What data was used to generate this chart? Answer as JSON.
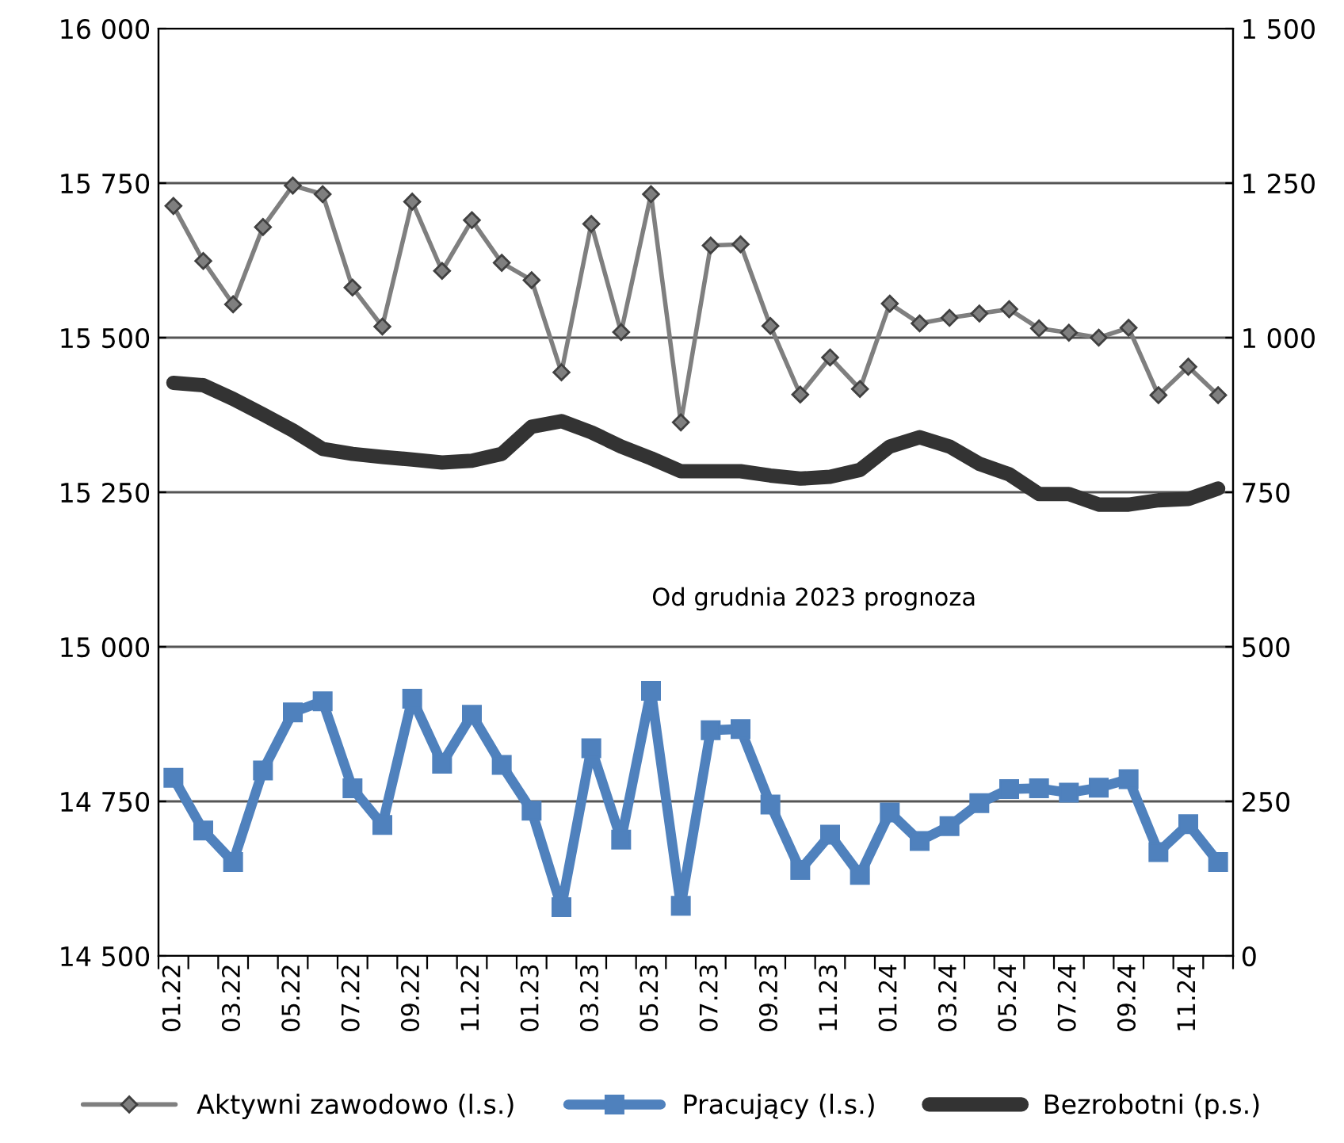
{
  "chart_data": {
    "type": "line",
    "categories": [
      "01.22",
      null,
      "03.22",
      null,
      "05.22",
      null,
      "07.22",
      null,
      "09.22",
      null,
      "11.22",
      null,
      "01.23",
      null,
      "03.23",
      null,
      "05.23",
      null,
      "07.23",
      null,
      "09.23",
      null,
      "11.23",
      null,
      "01.24",
      null,
      "03.24",
      null,
      "05.24",
      null,
      "07.24",
      null,
      "09.24",
      null,
      "11.24",
      null
    ],
    "series": [
      {
        "name": "Aktywni zawodowo (l.s.)",
        "color": "#7f7f7f",
        "marker": "diamond",
        "values": [
          15713,
          15624,
          15554,
          15679,
          15746,
          15732,
          15581,
          15518,
          15720,
          15608,
          15690,
          15621,
          15593,
          15444,
          15684,
          15509,
          15732,
          15363,
          15649,
          15651,
          15519,
          15408,
          15468,
          15417,
          15555,
          15523,
          15532,
          15539,
          15546,
          15515,
          15508,
          15500,
          15516,
          15407,
          15453,
          15407
        ]
      },
      {
        "name": "Pracujący (l.s.)",
        "color": "#4f81bd",
        "marker": "square",
        "values": [
          14788,
          14703,
          14652,
          14800,
          14894,
          14912,
          14771,
          14712,
          14916,
          14811,
          14890,
          14809,
          14735,
          14579,
          14836,
          14688,
          14929,
          14581,
          14865,
          14867,
          14745,
          14639,
          14696,
          14631,
          14732,
          14686,
          14710,
          14747,
          14770,
          14771,
          14764,
          14772,
          14786,
          14668,
          14713,
          14652
        ]
      },
      {
        "name": "Bezrobotni (p.s.)",
        "color": "#333333",
        "marker": "none",
        "axis": "y2",
        "values": [
          927,
          923,
          901,
          876,
          850,
          820,
          812,
          807,
          803,
          798,
          801,
          812,
          856,
          865,
          847,
          824,
          805,
          784,
          784,
          784,
          777,
          772,
          775,
          786,
          824,
          839,
          824,
          796,
          779,
          747,
          747,
          730,
          730,
          737,
          739,
          756
        ]
      }
    ],
    "ylim": [
      14500,
      16000
    ],
    "yticks": [
      {
        "value": 14500,
        "label": "14 500"
      },
      {
        "value": 14750,
        "label": "14 750"
      },
      {
        "value": 15000,
        "label": "15 000"
      },
      {
        "value": 15250,
        "label": "15 250"
      },
      {
        "value": 15500,
        "label": "15 500"
      },
      {
        "value": 15750,
        "label": "15 750"
      },
      {
        "value": 16000,
        "label": "16 000"
      }
    ],
    "y2lim": [
      0,
      1500
    ],
    "y2ticks": [
      0,
      250,
      500,
      750,
      {
        "value": 1000,
        "label": "1 000"
      },
      {
        "value": 1250,
        "label": "1 250"
      },
      {
        "value": 1500,
        "label": "1 500"
      }
    ],
    "annotations": [
      "Od grudnia 2023 prognoza"
    ],
    "grid": "y",
    "legend": "bottom"
  }
}
